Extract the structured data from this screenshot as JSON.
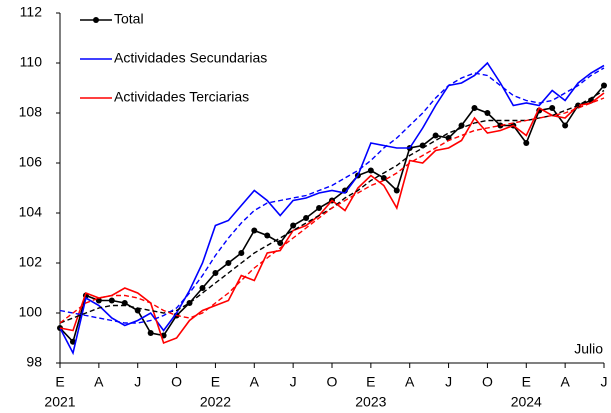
{
  "chart_data": {
    "type": "line",
    "categories": [
      "E",
      null,
      null,
      "A",
      null,
      null,
      "J",
      null,
      null,
      "O",
      null,
      null,
      "E",
      null,
      null,
      "A",
      null,
      null,
      "J",
      null,
      null,
      "O",
      null,
      null,
      "E",
      null,
      null,
      "A",
      null,
      null,
      "J",
      null,
      null,
      "O",
      null,
      null,
      "E",
      null,
      null,
      "A",
      null,
      null,
      "J"
    ],
    "years": [
      "2021",
      "2022",
      "2023",
      "2024"
    ],
    "annotation": "Julio",
    "ylim": [
      98,
      112
    ],
    "yticks": [
      98,
      100,
      102,
      104,
      106,
      108,
      110,
      112
    ],
    "legend": "upper left",
    "series": [
      {
        "name": "Total",
        "color": "#000000",
        "markers": true,
        "values": [
          99.4,
          98.85,
          100.7,
          100.5,
          100.5,
          100.4,
          100.1,
          99.2,
          99.1,
          99.9,
          100.4,
          101.0,
          101.6,
          102.0,
          102.4,
          103.3,
          103.1,
          102.8,
          103.5,
          103.8,
          104.2,
          104.5,
          104.9,
          105.5,
          105.7,
          105.4,
          104.9,
          106.6,
          106.7,
          107.1,
          107.0,
          107.5,
          108.2,
          108.0,
          107.5,
          107.5,
          106.8,
          108.1,
          108.2,
          107.5,
          108.3,
          108.5,
          109.1
        ]
      },
      {
        "name": "Actividades Secundarias",
        "color": "#0000ff",
        "values": [
          99.4,
          98.4,
          100.6,
          100.3,
          99.8,
          99.5,
          99.7,
          100.0,
          99.3,
          100.0,
          100.9,
          102.0,
          103.5,
          103.7,
          104.3,
          104.9,
          104.5,
          103.9,
          104.5,
          104.6,
          104.8,
          104.9,
          104.8,
          105.5,
          106.8,
          106.7,
          106.6,
          106.6,
          107.4,
          108.3,
          109.1,
          109.2,
          109.5,
          110.0,
          109.2,
          108.3,
          108.4,
          108.3,
          108.9,
          108.5,
          109.2,
          109.6,
          109.9
        ]
      },
      {
        "name": "Actividades Terciarias",
        "color": "#ff0000",
        "values": [
          99.4,
          99.3,
          100.8,
          100.6,
          100.7,
          101.0,
          100.8,
          100.4,
          98.8,
          99.0,
          99.7,
          100.1,
          100.3,
          100.5,
          101.5,
          101.3,
          102.4,
          102.5,
          103.3,
          103.5,
          103.9,
          104.5,
          104.1,
          105.0,
          105.5,
          105.1,
          104.2,
          106.1,
          106.0,
          106.5,
          106.6,
          106.9,
          107.8,
          107.2,
          107.3,
          107.5,
          107.1,
          108.2,
          107.9,
          107.8,
          108.3,
          108.4,
          108.8
        ]
      },
      {
        "color": "#000000",
        "dashed": true,
        "values": [
          99.6,
          99.8,
          100.0,
          100.2,
          100.3,
          100.3,
          100.2,
          100.1,
          100.0,
          100.1,
          100.4,
          100.8,
          101.2,
          101.6,
          102.0,
          102.4,
          102.7,
          103.0,
          103.3,
          103.6,
          103.9,
          104.2,
          104.6,
          104.9,
          105.3,
          105.6,
          105.9,
          106.3,
          106.6,
          106.9,
          107.2,
          107.4,
          107.6,
          107.7,
          107.7,
          107.7,
          107.7,
          107.8,
          107.9,
          108.1,
          108.3,
          108.6,
          108.9
        ]
      },
      {
        "color": "#0000ff",
        "dashed": true,
        "values": [
          100.1,
          100.0,
          99.9,
          99.8,
          99.7,
          99.6,
          99.6,
          99.7,
          99.9,
          100.2,
          100.8,
          101.5,
          102.3,
          103.0,
          103.6,
          104.1,
          104.4,
          104.5,
          104.6,
          104.7,
          104.9,
          105.1,
          105.4,
          105.7,
          106.1,
          106.6,
          107.0,
          107.5,
          108.0,
          108.6,
          109.1,
          109.4,
          109.6,
          109.5,
          109.1,
          108.7,
          108.5,
          108.4,
          108.5,
          108.8,
          109.1,
          109.5,
          109.8
        ]
      },
      {
        "color": "#ff0000",
        "dashed": true,
        "values": [
          99.6,
          100.0,
          100.4,
          100.6,
          100.7,
          100.7,
          100.6,
          100.4,
          100.1,
          99.9,
          99.8,
          100.0,
          100.4,
          100.8,
          101.3,
          101.8,
          102.2,
          102.6,
          103.0,
          103.4,
          103.8,
          104.2,
          104.5,
          104.8,
          105.1,
          105.3,
          105.6,
          106.0,
          106.3,
          106.6,
          106.9,
          107.1,
          107.3,
          107.4,
          107.5,
          107.6,
          107.7,
          107.8,
          107.9,
          108.0,
          108.2,
          108.4,
          108.6
        ]
      }
    ]
  }
}
